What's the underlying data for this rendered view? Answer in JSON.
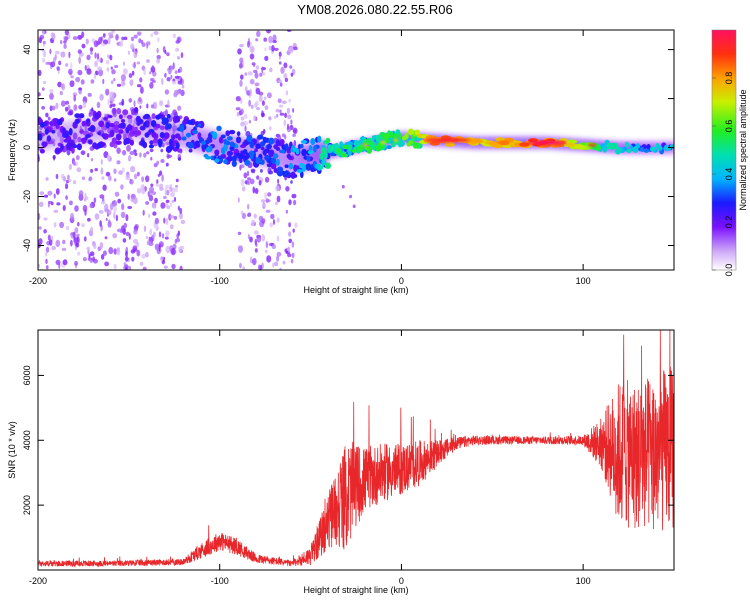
{
  "title": "YM08.2026.080.22.55.R06",
  "colors": {
    "snr_line": "#e8272b",
    "axis": "#000000"
  },
  "chart_data": [
    {
      "type": "heatmap",
      "name": "spectrogram",
      "xlabel": "Height of straight line (km)",
      "ylabel": "Frequency (Hz)",
      "xlim": [
        -200,
        150
      ],
      "ylim": [
        -50,
        48
      ],
      "xticks": [
        -200,
        -100,
        0,
        100
      ],
      "yticks": [
        -40,
        -20,
        0,
        20,
        40
      ],
      "ridge_x": [
        -200,
        -150,
        -120,
        -100,
        -80,
        -60,
        -40,
        -20,
        0,
        20,
        40,
        60,
        80,
        100,
        120,
        150
      ],
      "ridge_freq": [
        4,
        9,
        5,
        1,
        -2,
        -5,
        -2,
        1,
        4,
        3,
        2,
        2,
        2,
        1,
        0,
        0
      ],
      "ridge_amplitude": [
        0.25,
        0.22,
        0.3,
        0.35,
        0.3,
        0.35,
        0.5,
        0.55,
        0.6,
        0.9,
        0.8,
        0.85,
        0.95,
        0.7,
        0.45,
        0.4
      ],
      "colorbar": {
        "label": "Normalized spectral amplitude",
        "range": [
          0,
          1
        ],
        "ticks": [
          "0.0",
          "0.2",
          "0.4",
          "0.6",
          "0.8"
        ]
      }
    },
    {
      "type": "line",
      "name": "snr",
      "xlabel": "Height of straight line (km)",
      "ylabel": "SNR (10 * v/v)",
      "xlim": [
        -200,
        150
      ],
      "ylim": [
        0,
        7400
      ],
      "xticks": [
        -200,
        -100,
        0,
        100
      ],
      "yticks": [
        2000,
        4000,
        6000
      ],
      "series": [
        {
          "name": "SNR",
          "x": [
            -200,
            -160,
            -120,
            -110,
            -100,
            -90,
            -80,
            -60,
            -50,
            -40,
            -35,
            -30,
            -25,
            -20,
            -10,
            0,
            10,
            20,
            30,
            40,
            60,
            80,
            100,
            110,
            120,
            130,
            140,
            150
          ],
          "mean": [
            200,
            200,
            250,
            600,
            900,
            700,
            350,
            200,
            450,
            1500,
            2000,
            2300,
            2600,
            2800,
            3000,
            3100,
            3300,
            3600,
            3900,
            4000,
            4000,
            4000,
            4000,
            3900,
            3600,
            3500,
            3600,
            3800
          ],
          "noise": [
            90,
            90,
            100,
            250,
            300,
            250,
            150,
            90,
            300,
            900,
            1300,
            1700,
            1300,
            1000,
            900,
            800,
            700,
            400,
            200,
            150,
            120,
            120,
            150,
            800,
            2300,
            2300,
            2500,
            2600
          ]
        }
      ]
    }
  ]
}
